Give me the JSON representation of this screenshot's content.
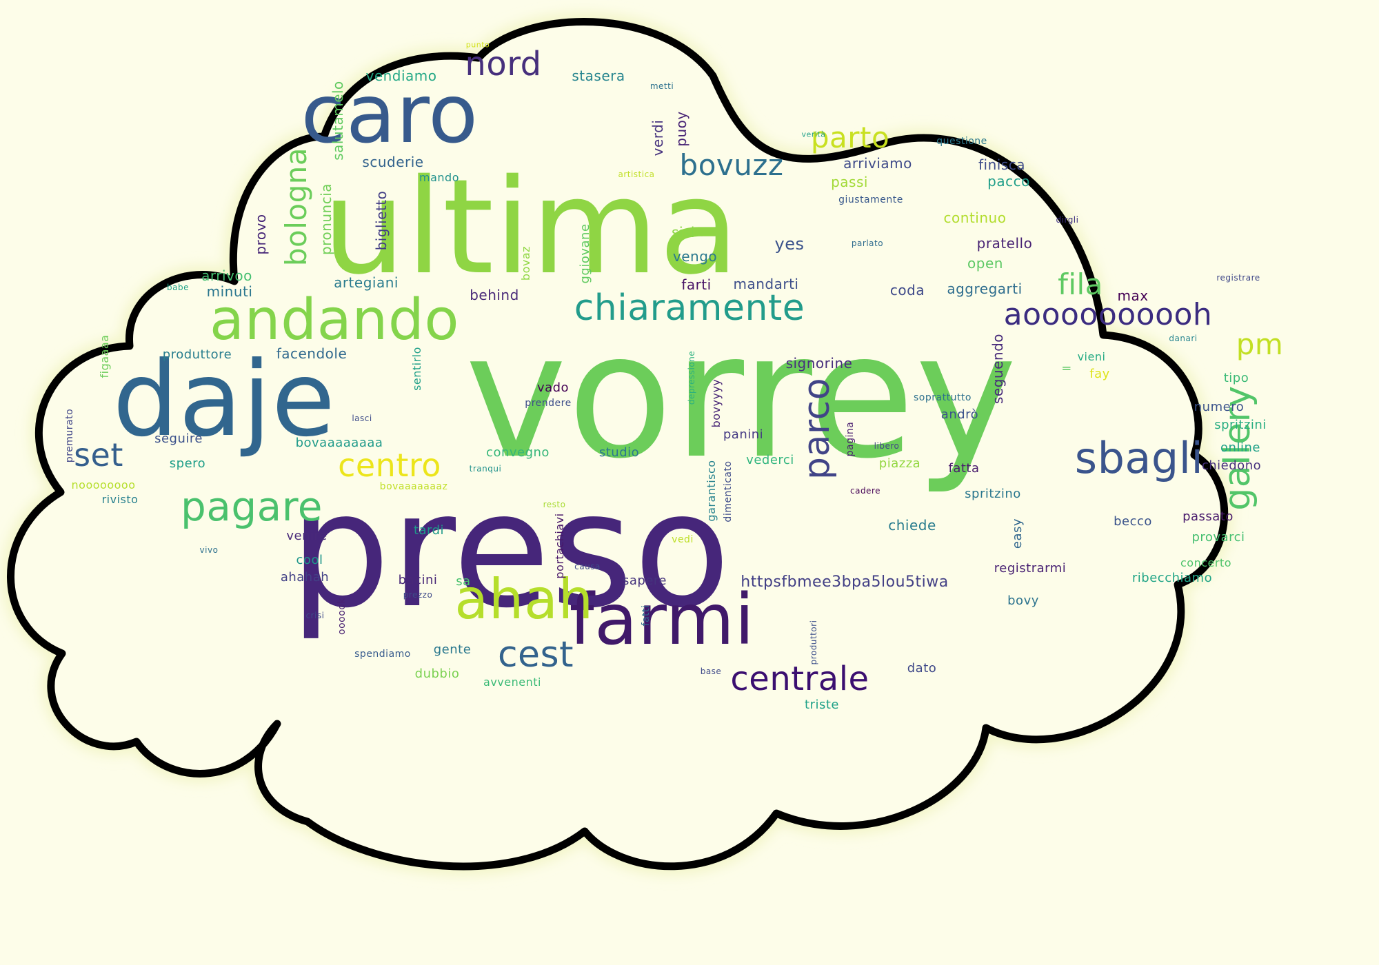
{
  "palette": {
    "background": "#fdfde9",
    "cloud_fill": "#fdfde9",
    "cloud_outline": "#000000",
    "glow": "#f3f5c9"
  },
  "words": [
    {
      "text": "vorrey",
      "c": "#6ccd5a"
    },
    {
      "text": "preso",
      "c": "#46267a"
    },
    {
      "text": "ultima",
      "c": "#8fd544"
    },
    {
      "text": "daje",
      "c": "#31668e"
    },
    {
      "text": "caro",
      "c": "#375a8c"
    },
    {
      "text": "andando",
      "c": "#84d44b"
    },
    {
      "text": "farmi",
      "c": "#40196a"
    },
    {
      "text": "ahah",
      "c": "#b5de2b"
    },
    {
      "text": "chiaramente",
      "c": "#229c8b"
    },
    {
      "text": "gallery",
      "c": "#52c569"
    },
    {
      "text": "aoooooooooh",
      "c": "#3b2c80"
    },
    {
      "text": "sbagli",
      "c": "#3a548c"
    },
    {
      "text": "pagare",
      "c": "#4ac16d"
    },
    {
      "text": "parco",
      "c": "#414487"
    },
    {
      "text": "centro",
      "c": "#ece51b"
    },
    {
      "text": "centrale",
      "c": "#3b0f70"
    },
    {
      "text": "cest",
      "c": "#33638d"
    },
    {
      "text": "set",
      "c": "#355f8d"
    },
    {
      "text": "nord",
      "c": "#462f7c"
    },
    {
      "text": "bovuzz",
      "c": "#2d708e"
    },
    {
      "text": "parto",
      "c": "#c8e020"
    },
    {
      "text": "bologna",
      "c": "#6bcd5a"
    },
    {
      "text": "fila",
      "c": "#5ec962"
    },
    {
      "text": "pm",
      "c": "#c2df23"
    },
    {
      "text": "httpsfbmee3bpa5lou5tiwa",
      "c": "#423f85"
    },
    {
      "text": "stasera",
      "c": "#25848e"
    },
    {
      "text": "vendiamo",
      "c": "#22a785"
    },
    {
      "text": "punto",
      "c": "#d2e21b"
    },
    {
      "text": "metti",
      "c": "#2c718e"
    },
    {
      "text": "salutamelo",
      "c": "#60ca60"
    },
    {
      "text": "verdi",
      "c": "#46327e"
    },
    {
      "text": "puoy",
      "c": "#482475"
    },
    {
      "text": "verità",
      "c": "#1fa088"
    },
    {
      "text": "questione",
      "c": "#2a788e"
    },
    {
      "text": "scuderie",
      "c": "#33638d"
    },
    {
      "text": "mando",
      "c": "#21918c"
    },
    {
      "text": "artistica",
      "c": "#c0df25"
    },
    {
      "text": "arriviamo",
      "c": "#3e4a89"
    },
    {
      "text": "finisca",
      "c": "#3e4c8a"
    },
    {
      "text": "passi",
      "c": "#a2da37"
    },
    {
      "text": "pacco",
      "c": "#1f9e89"
    },
    {
      "text": "giustamente",
      "c": "#38588c"
    },
    {
      "text": "biglietto",
      "c": "#433e85"
    },
    {
      "text": "pronuncia",
      "c": "#70cf57"
    },
    {
      "text": "continuo",
      "c": "#b2dd2d"
    },
    {
      "text": "dirgli",
      "c": "#3b2c80"
    },
    {
      "text": "provo",
      "c": "#482878"
    },
    {
      "text": "sisi",
      "c": "#8bd646"
    },
    {
      "text": "yes",
      "c": "#3a528b"
    },
    {
      "text": "parlato",
      "c": "#2f6c8e"
    },
    {
      "text": "pratello",
      "c": "#482374"
    },
    {
      "text": "vengo",
      "c": "#2a788e"
    },
    {
      "text": "open",
      "c": "#5cc863"
    },
    {
      "text": "bovaz",
      "c": "#90d743"
    },
    {
      "text": "ggiovane",
      "c": "#60ca60"
    },
    {
      "text": "babe",
      "c": "#1fa188"
    },
    {
      "text": "arrivoo",
      "c": "#44bf70"
    },
    {
      "text": "artegiani",
      "c": "#297b8e"
    },
    {
      "text": "farti",
      "c": "#481467"
    },
    {
      "text": "mandarti",
      "c": "#3d4e8a"
    },
    {
      "text": "coda",
      "c": "#3e4989"
    },
    {
      "text": "aggregarti",
      "c": "#2e6d8e"
    },
    {
      "text": "registrare",
      "c": "#3f4788"
    },
    {
      "text": "minuti",
      "c": "#2a768e"
    },
    {
      "text": "behind",
      "c": "#482878"
    },
    {
      "text": "max",
      "c": "#440154"
    },
    {
      "text": "figaaaa",
      "c": "#6ccd5a"
    },
    {
      "text": "produttore",
      "c": "#287d8e"
    },
    {
      "text": "facendole",
      "c": "#30698e"
    },
    {
      "text": "sentirlo",
      "c": "#1fa088"
    },
    {
      "text": "depressione",
      "c": "#2ab07f"
    },
    {
      "text": "signorine",
      "c": "#472f7d"
    },
    {
      "text": "seguendo",
      "c": "#472a7a"
    },
    {
      "text": "=",
      "c": "#5cc863"
    },
    {
      "text": "vieni",
      "c": "#24aa83"
    },
    {
      "text": "danari",
      "c": "#25848e"
    },
    {
      "text": "fay",
      "c": "#dde318"
    },
    {
      "text": "tipo",
      "c": "#3aba76"
    },
    {
      "text": "vado",
      "c": "#440154"
    },
    {
      "text": "prendere",
      "c": "#3d4d8a"
    },
    {
      "text": "bovyyyy",
      "c": "#482576"
    },
    {
      "text": "soprattutto",
      "c": "#2d708e"
    },
    {
      "text": "numero",
      "c": "#3a528b"
    },
    {
      "text": "premurato",
      "c": "#404588"
    },
    {
      "text": "lasci",
      "c": "#3e4c8a"
    },
    {
      "text": "andrò",
      "c": "#3b528b"
    },
    {
      "text": "spritzini",
      "c": "#27ad81"
    },
    {
      "text": "seguire",
      "c": "#3b518b"
    },
    {
      "text": "pagina",
      "c": "#481c6e"
    },
    {
      "text": "panini",
      "c": "#443983"
    },
    {
      "text": "libero",
      "c": "#414487"
    },
    {
      "text": "online",
      "c": "#1fa188"
    },
    {
      "text": "bovaaaaaaaa",
      "c": "#1f9a8a"
    },
    {
      "text": "convegno",
      "c": "#34b679"
    },
    {
      "text": "studio",
      "c": "#2a788e"
    },
    {
      "text": "garantisco",
      "c": "#26828e"
    },
    {
      "text": "vederci",
      "c": "#30b57e"
    },
    {
      "text": "piazza",
      "c": "#93d741"
    },
    {
      "text": "fatta",
      "c": "#481b6d"
    },
    {
      "text": "chiedono",
      "c": "#46307e"
    },
    {
      "text": "spero",
      "c": "#1f9e89"
    },
    {
      "text": "noooooooo",
      "c": "#b5de2b"
    },
    {
      "text": "tranqui",
      "c": "#21918c"
    },
    {
      "text": "bovaaaaaaaz",
      "c": "#c0df25"
    },
    {
      "text": "dimenticato",
      "c": "#3e4c8a"
    },
    {
      "text": "cadere",
      "c": "#440154"
    },
    {
      "text": "spritzino",
      "c": "#2a778e"
    },
    {
      "text": "rivisto",
      "c": "#27808e"
    },
    {
      "text": "resto",
      "c": "#a8db34"
    },
    {
      "text": "portachiavi",
      "c": "#481668"
    },
    {
      "text": "chiede",
      "c": "#287c8e"
    },
    {
      "text": "easy",
      "c": "#31678e"
    },
    {
      "text": "becco",
      "c": "#3a538b"
    },
    {
      "text": "passato",
      "c": "#481a6c"
    },
    {
      "text": "venire",
      "c": "#482979"
    },
    {
      "text": "tardi",
      "c": "#1f9a8a"
    },
    {
      "text": "vedi",
      "c": "#bddf26"
    },
    {
      "text": "provarci",
      "c": "#44bf70"
    },
    {
      "text": "vivo",
      "c": "#2d708e"
    },
    {
      "text": "cool",
      "c": "#1f968b"
    },
    {
      "text": "causa",
      "c": "#3e4c8a"
    },
    {
      "text": "registrarmi",
      "c": "#482173"
    },
    {
      "text": "concerto",
      "c": "#4ec36b"
    },
    {
      "text": "ahahah",
      "c": "#424186"
    },
    {
      "text": "bacini",
      "c": "#482878"
    },
    {
      "text": "sa",
      "c": "#48c16e"
    },
    {
      "text": "sapere",
      "c": "#45337d"
    },
    {
      "text": "ribecchiamo",
      "c": "#20a486"
    },
    {
      "text": "prezzo",
      "c": "#3e4a89"
    },
    {
      "text": "oooook",
      "c": "#482071"
    },
    {
      "text": "crisi",
      "c": "#3e4989"
    },
    {
      "text": "fatti",
      "c": "#2f6b8e"
    },
    {
      "text": "bovy",
      "c": "#2c738e"
    },
    {
      "text": "gente",
      "c": "#2a788e"
    },
    {
      "text": "spendiamo",
      "c": "#375b8d"
    },
    {
      "text": "produttori",
      "c": "#3c4f8a"
    },
    {
      "text": "dubbio",
      "c": "#7ad151"
    },
    {
      "text": "base",
      "c": "#3e4989"
    },
    {
      "text": "dato",
      "c": "#3f4889"
    },
    {
      "text": "avvenenti",
      "c": "#3aba76"
    },
    {
      "text": "triste",
      "c": "#1fa188"
    }
  ]
}
